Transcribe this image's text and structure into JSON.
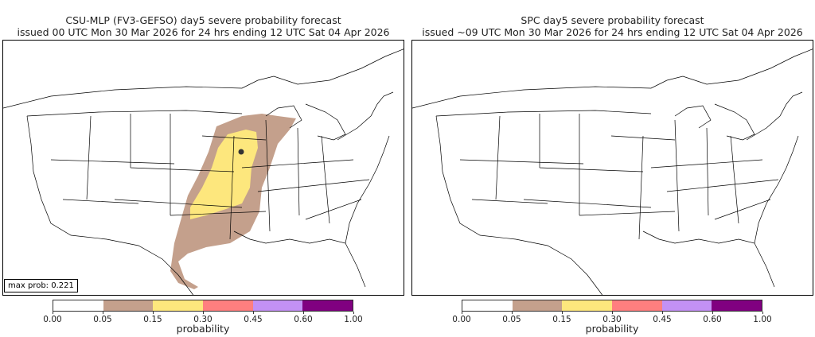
{
  "panels": [
    {
      "title_line1": "CSU-MLP (FV3-GEFSO) day5 severe probability forecast",
      "title_line2": "issued 00 UTC Mon 30 Mar 2026 for 24 hrs ending 12 UTC Sat 04 Apr 2026",
      "max_prob_label": "max prob: 0.221"
    },
    {
      "title_line1": "SPC day5 severe probability forecast",
      "title_line2": "issued ~09 UTC Mon 30 Mar 2026 for 24 hrs ending 12 UTC Sat 04 Apr 2026"
    }
  ],
  "chart_data": {
    "type": "heatmap",
    "colorbar": {
      "label": "probability",
      "ticks": [
        "0.00",
        "0.05",
        "0.15",
        "0.30",
        "0.45",
        "0.60",
        "1.00"
      ],
      "colors": [
        "#ffffff",
        "#c4a08c",
        "#fde77d",
        "#ff7f7f",
        "#c391f5",
        "#800080"
      ]
    },
    "max_prob": 0.221
  }
}
